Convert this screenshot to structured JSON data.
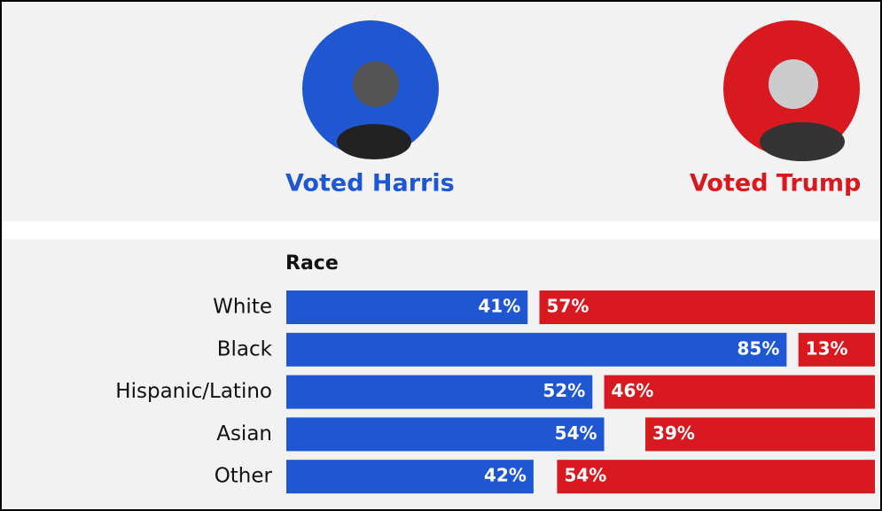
{
  "chart_data": {
    "type": "diverging-bar",
    "group_title": "Race",
    "categories": [
      "White",
      "Black",
      "Hispanic/Latino",
      "Asian",
      "Other"
    ],
    "series": [
      {
        "name": "Voted Harris",
        "color": "#1f57d3",
        "values": [
          41,
          85,
          52,
          54,
          42
        ],
        "value_labels": [
          "41%",
          "85%",
          "52%",
          "54%",
          "42%"
        ]
      },
      {
        "name": "Voted Trump",
        "color": "#d8191f",
        "values": [
          57,
          13,
          46,
          39,
          54
        ],
        "value_labels": [
          "57%",
          "13%",
          "46%",
          "39%",
          "54%"
        ]
      }
    ],
    "xlim": [
      0,
      100
    ]
  }
}
